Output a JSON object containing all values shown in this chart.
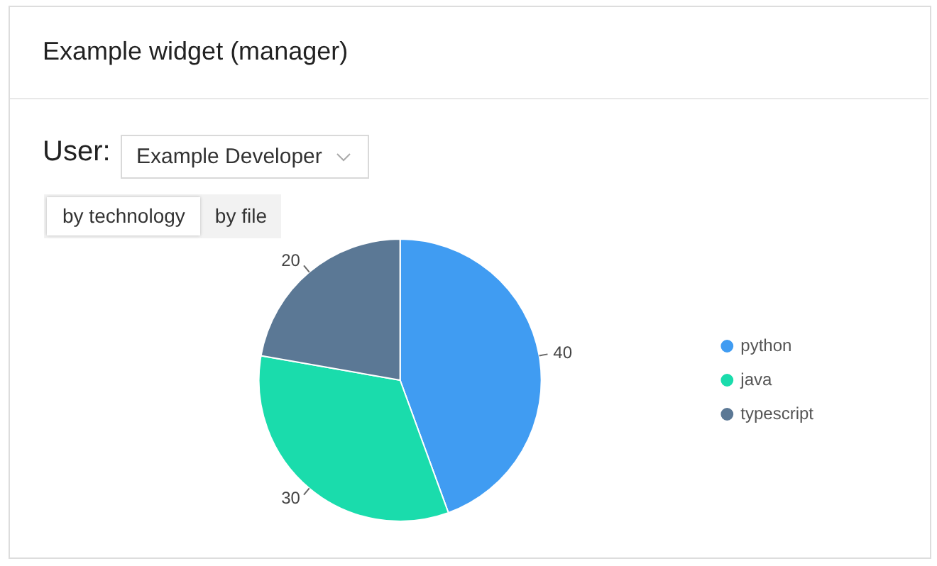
{
  "chart_data": {
    "type": "pie",
    "title": "Example widget (manager)",
    "annotations": [
      "User:",
      "Example Developer",
      "by technology",
      "by file"
    ],
    "categories": [
      "python",
      "java",
      "typescript"
    ],
    "values": [
      40,
      30,
      20
    ],
    "colors": [
      "#409cf2",
      "#1adcac",
      "#5b7895"
    ],
    "data_labels": true,
    "legend": "right"
  }
}
